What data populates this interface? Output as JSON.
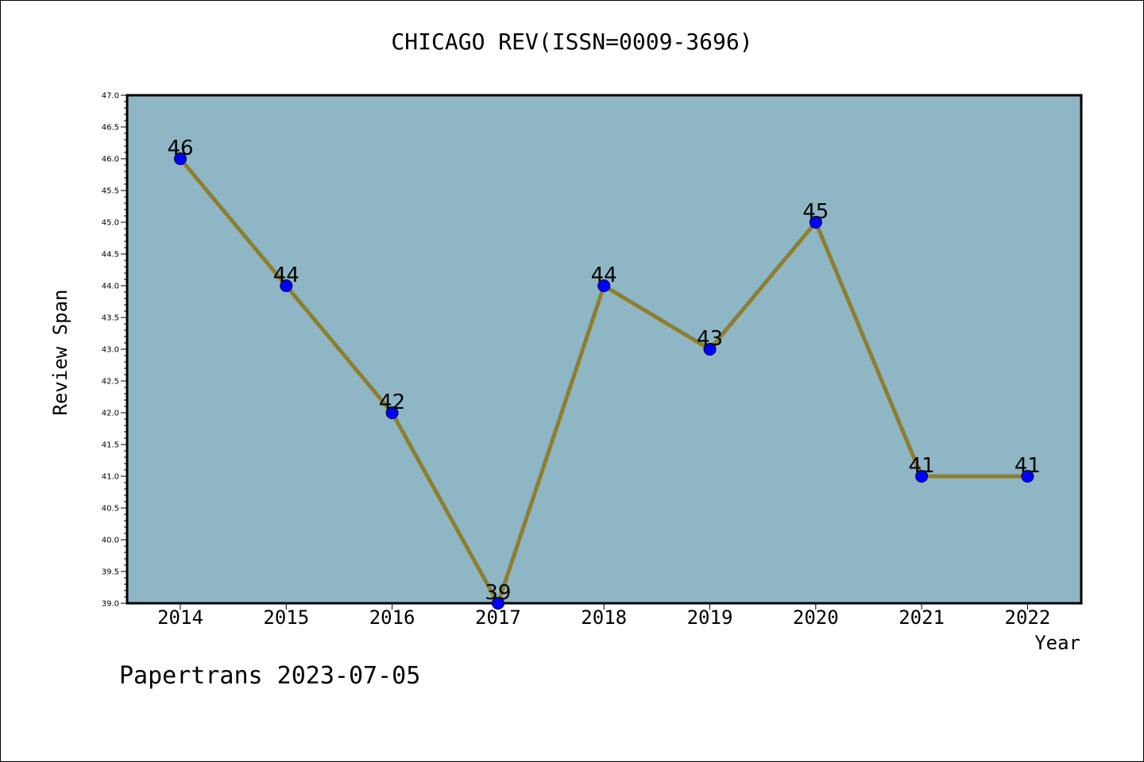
{
  "chart_data": {
    "type": "line",
    "title": "CHICAGO REV(ISSN=0009-3696)",
    "xlabel": "Year",
    "ylabel": "Review Span",
    "categories": [
      "2014",
      "2015",
      "2016",
      "2017",
      "2018",
      "2019",
      "2020",
      "2021",
      "2022"
    ],
    "series": [
      {
        "values": [
          46,
          44,
          42,
          39,
          44,
          43,
          45,
          41,
          41
        ]
      }
    ],
    "data_labels": [
      "46",
      "44",
      "42",
      "39",
      "44",
      "43",
      "45",
      "41",
      "41"
    ],
    "ylim": [
      39.0,
      47.0
    ],
    "yticks": [
      "39.0",
      "39.5",
      "40.0",
      "40.5",
      "41.0",
      "41.5",
      "42.0",
      "42.5",
      "43.0",
      "43.5",
      "44.0",
      "44.5",
      "45.0",
      "45.5",
      "46.0",
      "46.5",
      "47.0"
    ],
    "grid": false,
    "legend": "none",
    "colors": {
      "plot_background": "#8fb6c4",
      "line": "#8c7f30",
      "marker": "#0000ff"
    }
  },
  "footer": "Papertrans 2023-07-05"
}
